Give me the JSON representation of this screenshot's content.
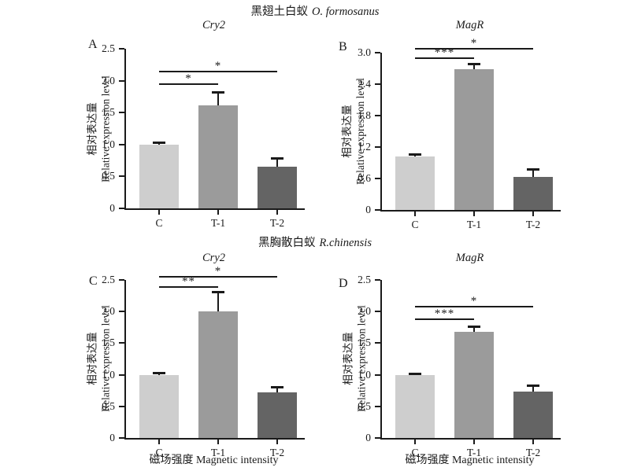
{
  "figure": {
    "heading_row1_cn": "黑翅土白蚁",
    "heading_row1_species": "O. formosanus",
    "heading_row2_cn": "黑胸散白蚁",
    "heading_row2_species": "R.chinensis"
  },
  "chart_data": [
    {
      "panel": "A",
      "type": "bar",
      "title": "Cry2",
      "ylabel_cn": "相对表达量",
      "ylabel_en": "Relative expression level",
      "xlabel": "",
      "categories": [
        "C",
        "T-1",
        "T-2"
      ],
      "values": [
        1.0,
        1.61,
        0.65
      ],
      "errors": [
        0.02,
        0.2,
        0.13
      ],
      "bar_colors": [
        "#cecece",
        "#9b9b9b",
        "#646464"
      ],
      "ylim": [
        0,
        2.5
      ],
      "yticks": [
        "0",
        "0.5",
        "1.0",
        "1.5",
        "2.0",
        "2.5"
      ],
      "grid": "off",
      "significance": [
        {
          "from": "C",
          "to": "T-1",
          "y": 1.93,
          "label": "*"
        },
        {
          "from": "C",
          "to": "T-2",
          "y": 2.13,
          "label": "*"
        }
      ]
    },
    {
      "panel": "B",
      "type": "bar",
      "title": "MagR",
      "ylabel_cn": "相对表达量",
      "ylabel_en": "Relative expression level",
      "xlabel": "",
      "categories": [
        "C",
        "T-1",
        "T-2"
      ],
      "values": [
        1.02,
        2.68,
        0.63
      ],
      "errors": [
        0.03,
        0.09,
        0.14
      ],
      "bar_colors": [
        "#cecece",
        "#9b9b9b",
        "#646464"
      ],
      "ylim": [
        0,
        3.0
      ],
      "yticks": [
        "0",
        "0.6",
        "1.2",
        "1.8",
        "2.4",
        "3.0"
      ],
      "grid": "off",
      "significance": [
        {
          "from": "C",
          "to": "T-1",
          "y": 2.88,
          "label": "***"
        },
        {
          "from": "C",
          "to": "T-2",
          "y": 3.06,
          "label": "*"
        }
      ]
    },
    {
      "panel": "C",
      "type": "bar",
      "title": "Cry2",
      "ylabel_cn": "相对表达量",
      "ylabel_en": "Relative expression level",
      "xlabel": "磁场强度 Magnetic intensity",
      "categories": [
        "C",
        "T-1",
        "T-2"
      ],
      "values": [
        1.0,
        2.0,
        0.72
      ],
      "errors": [
        0.02,
        0.3,
        0.07
      ],
      "bar_colors": [
        "#cecece",
        "#9b9b9b",
        "#646464"
      ],
      "ylim": [
        0,
        2.5
      ],
      "yticks": [
        "0",
        "0.5",
        "1.0",
        "1.5",
        "2.0",
        "2.5"
      ],
      "grid": "off",
      "significance": [
        {
          "from": "C",
          "to": "T-1",
          "y": 2.37,
          "label": "**"
        },
        {
          "from": "C",
          "to": "T-2",
          "y": 2.54,
          "label": "*"
        }
      ]
    },
    {
      "panel": "D",
      "type": "bar",
      "title": "MagR",
      "ylabel_cn": "相对表达量",
      "ylabel_en": "Relative expression level",
      "xlabel": "磁场强度 Magnetic intensity",
      "categories": [
        "C",
        "T-1",
        "T-2"
      ],
      "values": [
        0.99,
        1.68,
        0.74
      ],
      "errors": [
        0.02,
        0.08,
        0.08
      ],
      "bar_colors": [
        "#cecece",
        "#9b9b9b",
        "#646464"
      ],
      "ylim": [
        0,
        2.5
      ],
      "yticks": [
        "0",
        "0.5",
        "1.0",
        "1.5",
        "2.0",
        "2.5"
      ],
      "grid": "off",
      "significance": [
        {
          "from": "C",
          "to": "T-1",
          "y": 1.86,
          "label": "***"
        },
        {
          "from": "C",
          "to": "T-2",
          "y": 2.07,
          "label": "*"
        }
      ]
    }
  ]
}
